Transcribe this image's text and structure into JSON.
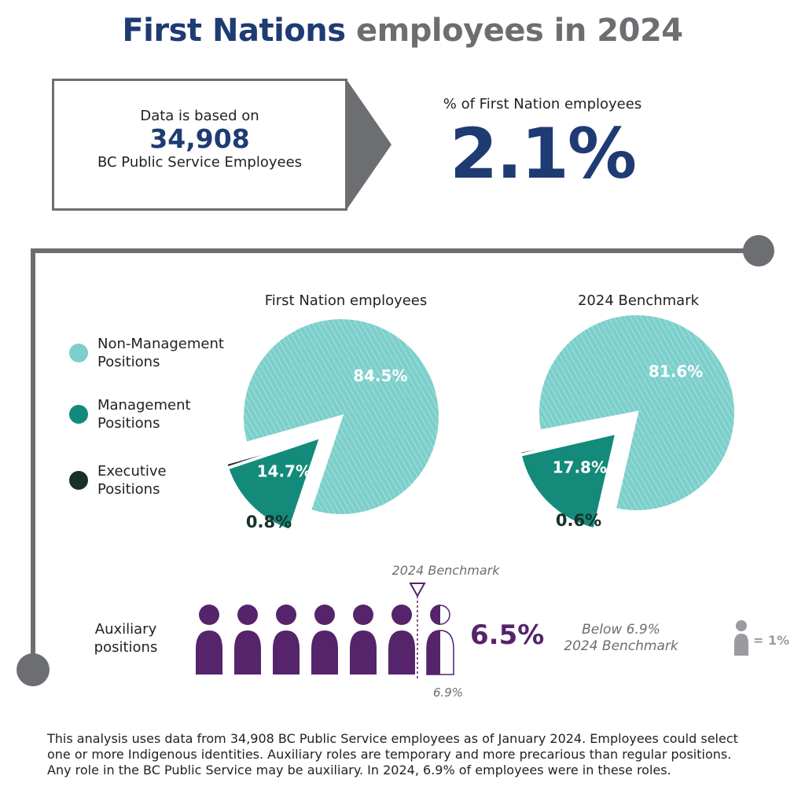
{
  "title": {
    "part1": "First Nations",
    "part2": "employees in 2024"
  },
  "info_box": {
    "line1": "Data is based on",
    "count": "34,908",
    "line3": "BC Public Service Employees"
  },
  "headline": {
    "label": "% of First Nation employees",
    "value": "2.1%"
  },
  "legend": [
    {
      "label_line1": "Non-Management",
      "label_line2": "Positions",
      "color": "#7ccfcb"
    },
    {
      "label_line1": "Management",
      "label_line2": "Positions",
      "color": "#138a7a"
    },
    {
      "label_line1": "Executive",
      "label_line2": "Positions",
      "color": "#17302c"
    }
  ],
  "chart_data": [
    {
      "type": "pie",
      "title": "First Nation employees",
      "categories": [
        "Non-Management Positions",
        "Management Positions",
        "Executive Positions"
      ],
      "values": [
        84.5,
        14.7,
        0.8
      ],
      "labels": [
        "84.5%",
        "14.7%",
        "0.8%"
      ],
      "colors": [
        "#7ccfcb",
        "#138a7a",
        "#17302c"
      ]
    },
    {
      "type": "pie",
      "title": "2024 Benchmark",
      "categories": [
        "Non-Management Positions",
        "Management Positions",
        "Executive Positions"
      ],
      "values": [
        81.6,
        17.8,
        0.6
      ],
      "labels": [
        "81.6%",
        "17.8%",
        "0.6%"
      ],
      "colors": [
        "#7ccfcb",
        "#138a7a",
        "#17302c"
      ]
    }
  ],
  "auxiliary": {
    "label_line1": "Auxiliary",
    "label_line2": "positions",
    "value": 6.5,
    "value_label": "6.5%",
    "benchmark": 6.9,
    "benchmark_title": "2024 Benchmark",
    "benchmark_value_label": "6.9%",
    "comparison_line1": "Below 6.9%",
    "comparison_line2": "2024 Benchmark",
    "icon_unit": "= 1%",
    "color": "#55246a",
    "icon_color": "#9a9b9e"
  },
  "footnote": {
    "line1": "This analysis uses data from 34,908 BC Public Service employees as of January 2024.  Employees could select",
    "line2": "one or more Indigenous identities. Auxiliary roles are temporary and more precarious than regular positions.",
    "line3": "Any role in the BC Public Service may be auxiliary. In 2024, 6.9% of employees were in these roles."
  }
}
